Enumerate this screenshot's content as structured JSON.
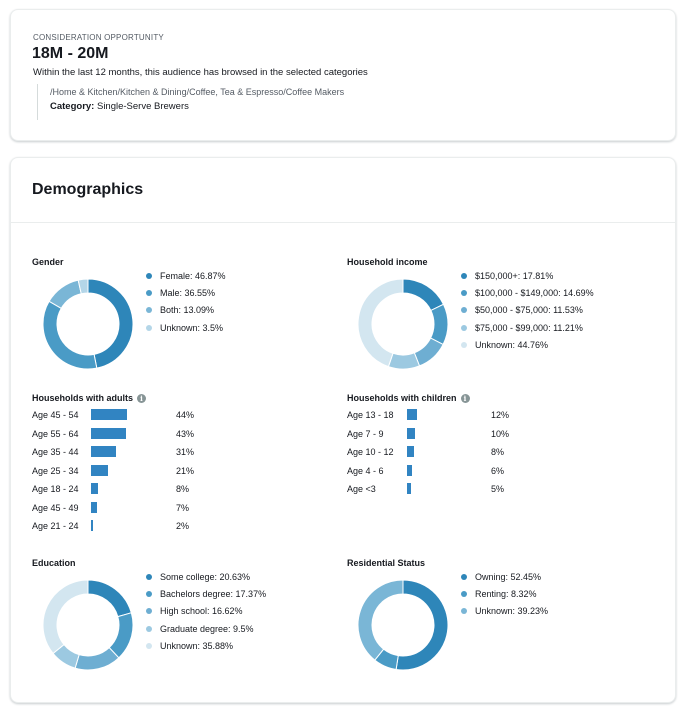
{
  "opportunity": {
    "label": "CONSIDERATION OPPORTUNITY",
    "range": "18M - 20M",
    "description": "Within the last 12 months, this audience has browsed in the selected categories",
    "path": "/Home & Kitchen/Kitchen & Dining/Coffee, Tea & Espresso/Coffee Makers",
    "category_key": "Category:",
    "category_value": "Single-Serve Brewers"
  },
  "demographics": {
    "title": "Demographics",
    "gender": {
      "title": "Gender",
      "items": [
        {
          "label": "Female: 46.87%",
          "value": 46.87,
          "color": "#2e86b9"
        },
        {
          "label": "Male: 36.55%",
          "value": 36.55,
          "color": "#4a9bc6"
        },
        {
          "label": "Both: 13.09%",
          "value": 13.09,
          "color": "#7ab6d6"
        },
        {
          "label": "Unknown: 3.5%",
          "value": 3.5,
          "color": "#b4d6e8"
        }
      ]
    },
    "income": {
      "title": "Household income",
      "items": [
        {
          "label": "$150,000+: 17.81%",
          "value": 17.81,
          "color": "#2e86b9"
        },
        {
          "label": "$100,000 - $149,000: 14.69%",
          "value": 14.69,
          "color": "#4a9bc6"
        },
        {
          "label": "$50,000 - $75,000: 11.53%",
          "value": 11.53,
          "color": "#6eaed2"
        },
        {
          "label": "$75,000 - $99,000: 11.21%",
          "value": 11.21,
          "color": "#9cc9e1"
        },
        {
          "label": "Unknown: 44.76%",
          "value": 44.76,
          "color": "#d3e6f0"
        }
      ]
    },
    "adults": {
      "title": "Households with adults",
      "info_icon": "info-icon",
      "rows": [
        {
          "label": "Age 45 - 54",
          "value": 44,
          "display": "44%"
        },
        {
          "label": "Age 55 - 64",
          "value": 43,
          "display": "43%"
        },
        {
          "label": "Age 35 - 44",
          "value": 31,
          "display": "31%"
        },
        {
          "label": "Age 25 - 34",
          "value": 21,
          "display": "21%"
        },
        {
          "label": "Age 18 - 24",
          "value": 8,
          "display": "8%"
        },
        {
          "label": "Age 45 - 49",
          "value": 7,
          "display": "7%"
        },
        {
          "label": "Age 21 - 24",
          "value": 2,
          "display": "2%"
        }
      ]
    },
    "children": {
      "title": "Households with children",
      "info_icon": "info-icon",
      "rows": [
        {
          "label": "Age 13 - 18",
          "value": 12,
          "display": "12%"
        },
        {
          "label": "Age 7 - 9",
          "value": 10,
          "display": "10%"
        },
        {
          "label": "Age 10 - 12",
          "value": 8,
          "display": "8%"
        },
        {
          "label": "Age 4 - 6",
          "value": 6,
          "display": "6%"
        },
        {
          "label": "Age <3",
          "value": 5,
          "display": "5%"
        }
      ]
    },
    "education": {
      "title": "Education",
      "items": [
        {
          "label": "Some college: 20.63%",
          "value": 20.63,
          "color": "#2e86b9"
        },
        {
          "label": "Bachelors degree: 17.37%",
          "value": 17.37,
          "color": "#4a9bc6"
        },
        {
          "label": "High school: 16.62%",
          "value": 16.62,
          "color": "#6eaed2"
        },
        {
          "label": "Graduate degree: 9.5%",
          "value": 9.5,
          "color": "#9cc9e1"
        },
        {
          "label": "Unknown: 35.88%",
          "value": 35.88,
          "color": "#d3e6f0"
        }
      ]
    },
    "residential": {
      "title": "Residential Status",
      "items": [
        {
          "label": "Owning: 52.45%",
          "value": 52.45,
          "color": "#2e86b9"
        },
        {
          "label": "Renting: 8.32%",
          "value": 8.32,
          "color": "#4a9bc6"
        },
        {
          "label": "Unknown: 39.23%",
          "value": 39.23,
          "color": "#7ab6d6"
        }
      ]
    },
    "bar_color": "#3184c2"
  }
}
